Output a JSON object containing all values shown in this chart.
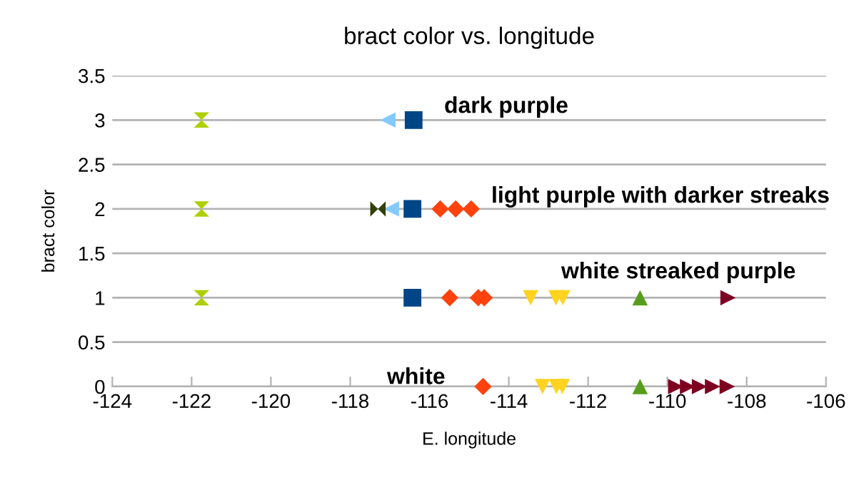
{
  "chart_data": {
    "type": "scatter",
    "title": "bract color vs. longitude",
    "xlabel": "E. longitude",
    "ylabel": "bract color",
    "xlim": [
      -124,
      -106
    ],
    "xticks": [
      -124,
      -122,
      -120,
      -118,
      -116,
      -114,
      -112,
      -110,
      -108,
      -106
    ],
    "ylim": [
      0,
      3.5
    ],
    "yticks": [
      0,
      0.5,
      1,
      1.5,
      2,
      2.5,
      3,
      3.5
    ],
    "grid": "y",
    "legend": false,
    "series": [
      {
        "color": "#aecf00",
        "x": [
          -121.75,
          -121.75,
          -121.75
        ],
        "values": [
          3,
          2,
          1
        ]
      },
      {
        "color": "#83caff",
        "marker": "triangle_left",
        "x": [
          -117.05,
          -116.96
        ],
        "values": [
          3,
          2
        ]
      },
      {
        "color": "#314004",
        "marker": "cross",
        "x": [
          -117.3
        ],
        "values": [
          2
        ]
      },
      {
        "color": "#004586",
        "marker": "square",
        "x": [
          -116.4,
          -116.43,
          -116.43
        ],
        "values": [
          3,
          2,
          1
        ]
      },
      {
        "color": "#ff420e",
        "marker": "diamond",
        "x": [
          -115.73,
          -115.34,
          -114.95,
          -115.49,
          -114.77,
          -114.62,
          -114.65
        ],
        "values": [
          2,
          2,
          2,
          1,
          1,
          1,
          0
        ]
      },
      {
        "color": "#ffd320",
        "marker": "triangle_down",
        "x": [
          -113.45,
          -112.81,
          -112.64,
          -113.15,
          -112.8,
          -112.65
        ],
        "values": [
          1,
          1,
          1,
          0,
          0,
          0
        ]
      },
      {
        "color": "#579d1c",
        "marker": "triangle",
        "x": [
          -110.69,
          -110.69
        ],
        "values": [
          1,
          0
        ]
      },
      {
        "color": "#7e0021",
        "marker": "triangle_right",
        "x": [
          -108.47,
          -109.79,
          -109.49,
          -109.19,
          -108.86,
          -108.49
        ],
        "values": [
          1,
          0,
          0,
          0,
          0,
          0
        ]
      }
    ],
    "annotations": [
      "dark purple",
      "light purple with darker streaks",
      "white streaked purple",
      "white"
    ]
  }
}
